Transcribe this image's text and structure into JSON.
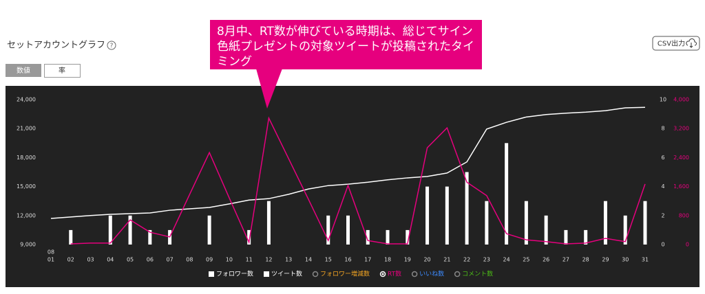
{
  "header": {
    "title": "セットアカウントグラフ",
    "help": "?",
    "export_button": "CSV出力"
  },
  "toggle": [
    "数値",
    "率"
  ],
  "callout": "8月中、RT数が伸びている時期は、総じてサイン色紙プレゼントの対象ツイートが投稿されたタイミング",
  "chart_data": {
    "type": "combo",
    "month": "08",
    "categories": [
      "01",
      "02",
      "03",
      "04",
      "05",
      "06",
      "07",
      "08",
      "09",
      "10",
      "11",
      "12",
      "13",
      "14",
      "15",
      "16",
      "17",
      "18",
      "19",
      "20",
      "21",
      "22",
      "23",
      "24",
      "25",
      "26",
      "27",
      "28",
      "29",
      "30",
      "31"
    ],
    "series": [
      {
        "name": "フォロワー数",
        "type": "line",
        "color": "#ffffff",
        "values": [
          11700,
          11850,
          12000,
          12130,
          12200,
          12270,
          12550,
          12700,
          12840,
          13200,
          13600,
          13750,
          14200,
          14750,
          15100,
          15250,
          15450,
          15700,
          15900,
          16050,
          16400,
          17550,
          20950,
          21650,
          22200,
          22450,
          22600,
          22700,
          22850,
          23150,
          23200
        ]
      },
      {
        "name": "ツイート数",
        "type": "bar",
        "axis": "y2",
        "color": "#ffffff",
        "values": [
          0,
          1,
          0,
          2,
          2,
          1,
          1,
          0,
          2,
          0,
          1,
          3,
          0,
          0,
          2,
          2,
          1,
          1,
          1,
          4,
          4,
          5,
          3,
          7,
          3,
          2,
          1,
          1,
          3,
          2,
          3
        ]
      },
      {
        "name": "RT数",
        "type": "line",
        "axis": "y3",
        "color": "#e6007e",
        "values": [
          null,
          20,
          40,
          40,
          680,
          340,
          210,
          1380,
          2540,
          1290,
          60,
          3490,
          2370,
          1250,
          110,
          1630,
          110,
          20,
          20,
          2670,
          3220,
          1720,
          1350,
          300,
          130,
          80,
          20,
          40,
          170,
          80,
          1670
        ]
      }
    ],
    "inactive_series": [
      {
        "name": "フォロワー増減数",
        "color": "#f5a623"
      },
      {
        "name": "いいね数",
        "color": "#3d8bff"
      },
      {
        "name": "コメント数",
        "color": "#4cbb17"
      }
    ],
    "ylim": [
      9000,
      24000
    ],
    "yticks": [
      {
        "value": 9000,
        "label": "9,000"
      },
      {
        "value": 12000,
        "label": "12,000"
      },
      {
        "value": 15000,
        "label": "15,000"
      },
      {
        "value": 18000,
        "label": "18,000"
      },
      {
        "value": 21000,
        "label": "21,000"
      },
      {
        "value": 24000,
        "label": "24,000"
      }
    ],
    "y2lim": [
      0,
      10
    ],
    "y2ticks": [
      0,
      2,
      4,
      6,
      8,
      10
    ],
    "y3lim": [
      0,
      4000
    ],
    "y3ticks": [
      0,
      800,
      {
        "value": 1600,
        "label": "1,600"
      },
      {
        "value": 2400,
        "label": "2,400"
      },
      {
        "value": 3200,
        "label": "3,200"
      },
      {
        "value": 4000,
        "label": "4,000"
      }
    ],
    "y3color": "#e6007e"
  }
}
